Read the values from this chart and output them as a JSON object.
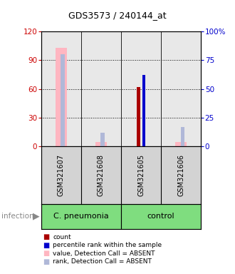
{
  "title": "GDS3573 / 240144_at",
  "samples": [
    "GSM321607",
    "GSM321608",
    "GSM321605",
    "GSM321606"
  ],
  "left_ylim": [
    0,
    120
  ],
  "left_yticks": [
    0,
    30,
    60,
    90,
    120
  ],
  "right_yticks": [
    0,
    30,
    60,
    90,
    120
  ],
  "right_yticklabels": [
    "0",
    "25",
    "50",
    "75",
    "100%"
  ],
  "left_ycolor": "#cc0000",
  "right_ycolor": "#0000cc",
  "count_values": [
    null,
    null,
    62,
    null
  ],
  "count_color": "#aa0000",
  "rank_values": [
    null,
    null,
    62,
    null
  ],
  "rank_color": "#0000cc",
  "absent_value_values": [
    103,
    5,
    null,
    5
  ],
  "absent_value_color": "#ffb6c1",
  "absent_rank_values": [
    80,
    12,
    null,
    17
  ],
  "absent_rank_color": "#b0b8d8",
  "group_names": [
    "C. pneumonia",
    "control"
  ],
  "group_colors": [
    "#7fdd7f",
    "#7fdd7f"
  ],
  "legend_items": [
    {
      "color": "#aa0000",
      "label": "count"
    },
    {
      "color": "#0000cc",
      "label": "percentile rank within the sample"
    },
    {
      "color": "#ffb6c1",
      "label": "value, Detection Call = ABSENT"
    },
    {
      "color": "#b0b8d8",
      "label": "rank, Detection Call = ABSENT"
    }
  ]
}
